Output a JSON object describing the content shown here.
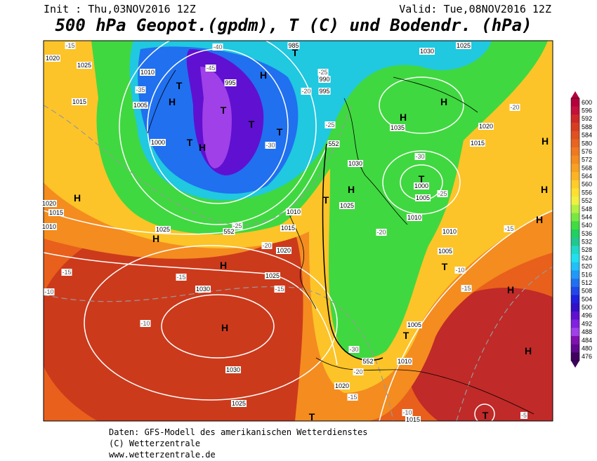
{
  "header": {
    "init": "Init : Thu,03NOV2016 12Z",
    "valid": "Valid: Tue,08NOV2016 12Z",
    "title": "500 hPa Geopot.(gpdm), T (C) und Bodendr. (hPa)"
  },
  "map": {
    "isobar_labels": [
      "1020",
      "1025",
      "1010",
      "1015",
      "1005",
      "1000",
      "995",
      "990",
      "985",
      "995",
      "1030",
      "1025",
      "1035",
      "1030",
      "1000",
      "1005",
      "1025",
      "1010",
      "1010",
      "1015",
      "1020",
      "1025",
      "1025",
      "1030",
      "1030",
      "1025",
      "1020",
      "1005",
      "1010",
      "1015",
      "1010",
      "1005",
      "1020",
      "1015",
      "1015",
      "1020",
      "1010"
    ],
    "temperature_labels": [
      "-15",
      "-35",
      "-45",
      "-40",
      "-25",
      "-20",
      "-25",
      "-30",
      "-30",
      "-25",
      "-20",
      "-20",
      "-25",
      "-15",
      "-15",
      "-15",
      "-10",
      "-10",
      "-15",
      "-15",
      "-10",
      "-20",
      "-30",
      "-20",
      "-15",
      "-10",
      "-5"
    ],
    "geopotential_labels": [
      "552",
      "552",
      "552"
    ],
    "pressure_centers": [
      "H",
      "H",
      "T",
      "T",
      "T",
      "T",
      "T",
      "T",
      "H",
      "H",
      "H",
      "T",
      "H",
      "T",
      "H",
      "H",
      "H",
      "H",
      "H",
      "H",
      "T",
      "H",
      "T",
      "H",
      "T",
      "T",
      "H"
    ]
  },
  "colorbar": {
    "ticks": [
      600,
      596,
      592,
      588,
      584,
      580,
      576,
      572,
      568,
      564,
      560,
      556,
      552,
      548,
      544,
      540,
      536,
      532,
      528,
      524,
      520,
      516,
      512,
      508,
      504,
      500,
      496,
      492,
      488,
      484,
      480,
      476
    ]
  },
  "footer": {
    "line1": "Daten: GFS-Modell des amerikanischen Wetterdienstes",
    "line2": "(C) Wetterzentrale",
    "line3": "www.wetterzentrale.de"
  }
}
